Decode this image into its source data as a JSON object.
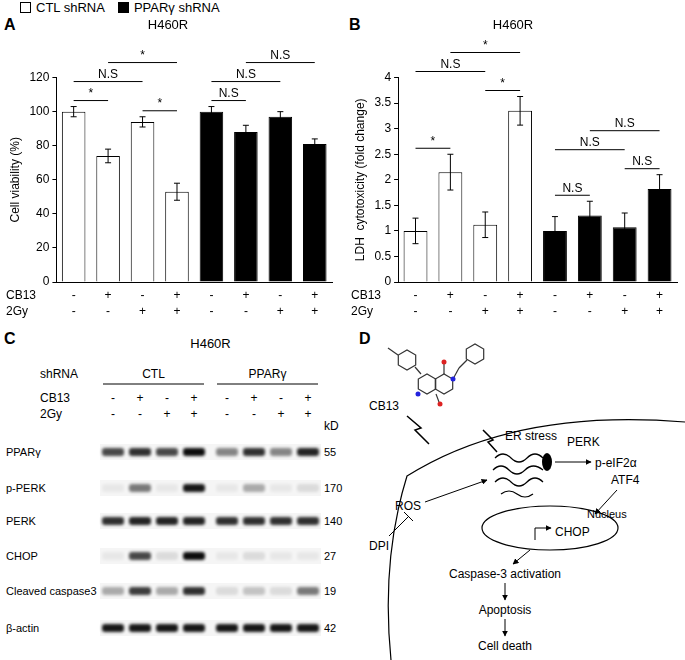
{
  "chart_data": [
    {
      "panel": "A",
      "type": "bar",
      "title": "H460R",
      "y_label": "Cell viability (%)",
      "categories": [
        null,
        null,
        null,
        null,
        null,
        null,
        null,
        null
      ],
      "series": [
        {
          "name": "CTL shRNA",
          "color": "#ffffff",
          "values": [
            100,
            74,
            94,
            53,
            null,
            null,
            null,
            null
          ],
          "errors": [
            3,
            4,
            3,
            5,
            null,
            null,
            null,
            null
          ]
        },
        {
          "name": "PPARγ shRNA",
          "color": "#000000",
          "values": [
            null,
            null,
            null,
            null,
            100,
            88,
            97,
            81
          ],
          "errors": [
            null,
            null,
            null,
            null,
            3,
            4,
            3,
            3
          ]
        }
      ],
      "ylim": [
        0,
        120
      ],
      "yticks": [
        0,
        20,
        40,
        60,
        80,
        100,
        120
      ],
      "grid": false,
      "legend": "top-left",
      "tick_labels": "y",
      "treatments": [
        {
          "label": "CB13",
          "marks": [
            "-",
            "+",
            "-",
            "+",
            "-",
            "+",
            "-",
            "+"
          ]
        },
        {
          "label": "2Gy",
          "marks": [
            "-",
            "-",
            "+",
            "+",
            "-",
            "-",
            "+",
            "+"
          ]
        }
      ],
      "comparisons": [
        {
          "from": 0,
          "to": 1,
          "label": "*"
        },
        {
          "from": 2,
          "to": 3,
          "label": "*"
        },
        {
          "from": 0,
          "to": 2,
          "label": "N.S"
        },
        {
          "from": 1,
          "to": 3,
          "label": "*"
        },
        {
          "from": 4,
          "to": 5,
          "label": "N.S"
        },
        {
          "from": 4,
          "to": 6,
          "label": "N.S"
        },
        {
          "from": 5,
          "to": 7,
          "label": "N.S"
        }
      ]
    },
    {
      "panel": "B",
      "type": "bar",
      "title": "H460R",
      "y_label": "LDH  cytotoxicity (fold change)",
      "categories": [
        null,
        null,
        null,
        null,
        null,
        null,
        null,
        null
      ],
      "series": [
        {
          "color": "#ffffff",
          "values": [
            1.0,
            2.15,
            1.12,
            3.35,
            null,
            null,
            null,
            null
          ],
          "errors": [
            0.25,
            0.35,
            0.25,
            0.28,
            null,
            null,
            null,
            null
          ]
        },
        {
          "color": "#000000",
          "values": [
            null,
            null,
            null,
            null,
            1.0,
            1.3,
            1.07,
            1.82
          ],
          "errors": [
            null,
            null,
            null,
            null,
            0.28,
            0.28,
            0.28,
            0.28
          ]
        }
      ],
      "ylim": [
        0,
        4
      ],
      "yticks": [
        0,
        0.5,
        1,
        1.5,
        2,
        2.5,
        3,
        3.5,
        4
      ],
      "grid": false,
      "tick_labels": "y",
      "treatments": [
        {
          "label": "CB13",
          "marks": [
            "-",
            "+",
            "-",
            "+",
            "-",
            "+",
            "-",
            "+"
          ]
        },
        {
          "label": "2Gy",
          "marks": [
            "-",
            "-",
            "+",
            "+",
            "-",
            "-",
            "+",
            "+"
          ]
        }
      ],
      "comparisons": [
        {
          "from": 0,
          "to": 1,
          "label": "*"
        },
        {
          "from": 2,
          "to": 3,
          "label": "*"
        },
        {
          "from": 0,
          "to": 2,
          "label": "N.S"
        },
        {
          "from": 1,
          "to": 3,
          "label": "*"
        },
        {
          "from": 4,
          "to": 5,
          "label": "N.S"
        },
        {
          "from": 6,
          "to": 7,
          "label": "N.S"
        },
        {
          "from": 4,
          "to": 6,
          "label": "N.S"
        },
        {
          "from": 5,
          "to": 7,
          "label": "N.S"
        }
      ]
    }
  ],
  "blot": {
    "panel": "C",
    "title": "H460R",
    "shrna_label": "shRNA",
    "groups": [
      {
        "label": "CTL",
        "lanes": 4
      },
      {
        "label": "PPARγ",
        "lanes": 4
      }
    ],
    "treatments": [
      {
        "label": "CB13",
        "marks": [
          "-",
          "+",
          "-",
          "+",
          "-",
          "+",
          "-",
          "+"
        ]
      },
      {
        "label": "2Gy",
        "marks": [
          "-",
          "-",
          "+",
          "+",
          "-",
          "-",
          "+",
          "+"
        ]
      }
    ],
    "unit": "kD",
    "rows": [
      {
        "label": "PPARγ",
        "kd": 55,
        "intensity": [
          0.7,
          0.8,
          0.7,
          0.95,
          0.45,
          0.8,
          0.45,
          0.85
        ]
      },
      {
        "label": "p-PERK",
        "kd": 170,
        "intensity": [
          0.05,
          0.5,
          0.05,
          0.9,
          0.05,
          0.3,
          0.05,
          0.1
        ]
      },
      {
        "label": "PERK",
        "kd": 140,
        "intensity": [
          0.8,
          0.85,
          0.85,
          0.85,
          0.8,
          0.8,
          0.8,
          0.8
        ]
      },
      {
        "label": "CHOP",
        "kd": 27,
        "intensity": [
          0.05,
          0.7,
          0.1,
          0.95,
          0.05,
          0.1,
          0.05,
          0.05
        ]
      },
      {
        "label": "Cleaved caspase3",
        "kd": 19,
        "intensity": [
          0.3,
          0.75,
          0.3,
          0.8,
          0.1,
          0.2,
          0.1,
          0.5
        ]
      },
      {
        "label": "β-actin",
        "kd": 42,
        "intensity": [
          0.9,
          0.9,
          0.9,
          0.9,
          0.9,
          0.9,
          0.9,
          0.9
        ]
      }
    ]
  },
  "diagram": {
    "panel": "D",
    "compound": "CB13",
    "stimulus": "ER stress",
    "sensor": "PERK",
    "downstream": [
      "p-eIF2α",
      "ATF4"
    ],
    "ros": "ROS",
    "inhibitor": "DPI",
    "nucleus": "Nucleus",
    "gene": "CHOP",
    "cascade": [
      "Caspase-3 activation",
      "Apoptosis",
      "Cell death"
    ]
  }
}
